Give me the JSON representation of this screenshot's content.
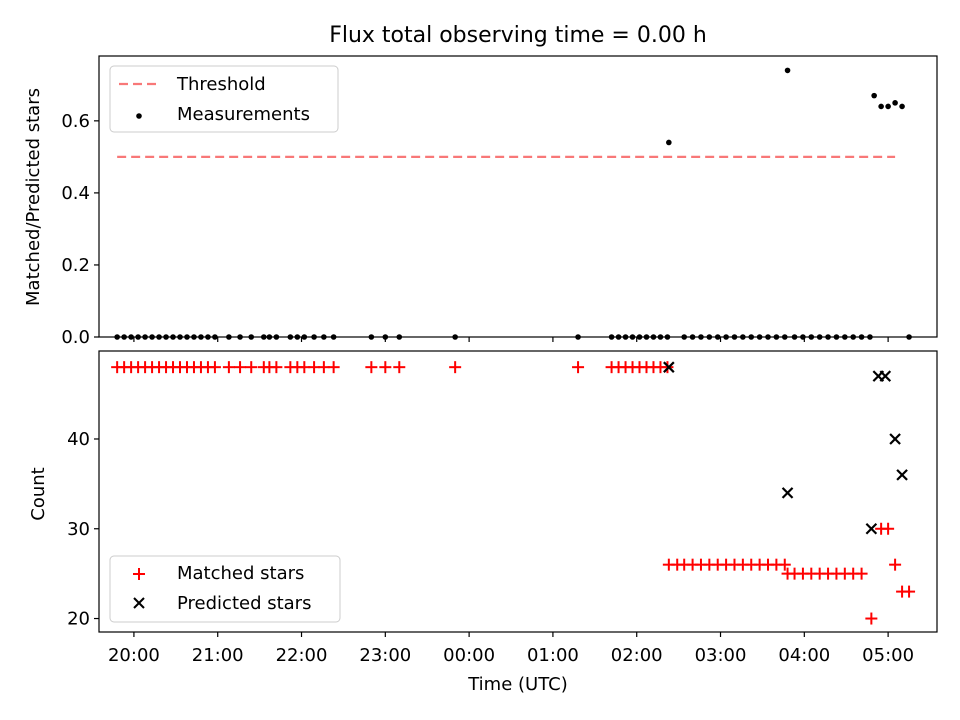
{
  "figure": {
    "title": "Flux total observing time = 0.00 h"
  },
  "chart_data": [
    {
      "type": "scatter",
      "title": "Flux total observing time = 0.00 h",
      "xlabel": "",
      "ylabel": "Matched/Predicted stars",
      "ylim": [
        0.0,
        0.78
      ],
      "yticks": [
        0.0,
        0.2,
        0.4,
        0.6
      ],
      "xlim": [
        "19:35",
        "05:35"
      ],
      "grid": false,
      "legend_position": "top-left",
      "threshold": {
        "name": "Threshold",
        "value": 0.5,
        "x_start": "19:48",
        "x_end": "05:05",
        "color": "#f87878",
        "style": "dashed"
      },
      "series": [
        {
          "name": "Measurements",
          "color": "#000000",
          "marker": "dot",
          "points": [
            [
              "19:48",
              0
            ],
            [
              "19:53",
              0
            ],
            [
              "19:58",
              0
            ],
            [
              "20:03",
              0
            ],
            [
              "20:08",
              0
            ],
            [
              "20:13",
              0
            ],
            [
              "20:18",
              0
            ],
            [
              "20:23",
              0
            ],
            [
              "20:28",
              0
            ],
            [
              "20:33",
              0
            ],
            [
              "20:38",
              0
            ],
            [
              "20:43",
              0
            ],
            [
              "20:48",
              0
            ],
            [
              "20:53",
              0
            ],
            [
              "20:58",
              0
            ],
            [
              "21:08",
              0
            ],
            [
              "21:16",
              0
            ],
            [
              "21:24",
              0
            ],
            [
              "21:33",
              0
            ],
            [
              "21:37",
              0
            ],
            [
              "21:42",
              0
            ],
            [
              "21:52",
              0
            ],
            [
              "21:57",
              0
            ],
            [
              "22:02",
              0
            ],
            [
              "22:09",
              0
            ],
            [
              "22:16",
              0
            ],
            [
              "22:23",
              0
            ],
            [
              "22:50",
              0
            ],
            [
              "23:00",
              0
            ],
            [
              "23:10",
              0
            ],
            [
              "23:50",
              0
            ],
            [
              "01:18",
              0
            ],
            [
              "01:42",
              0
            ],
            [
              "01:47",
              0
            ],
            [
              "01:52",
              0
            ],
            [
              "01:57",
              0
            ],
            [
              "02:02",
              0
            ],
            [
              "02:07",
              0
            ],
            [
              "02:12",
              0
            ],
            [
              "02:17",
              0
            ],
            [
              "02:22",
              0
            ],
            [
              "02:23",
              0.54
            ],
            [
              "02:34",
              0
            ],
            [
              "02:40",
              0
            ],
            [
              "02:46",
              0
            ],
            [
              "02:52",
              0
            ],
            [
              "02:58",
              0
            ],
            [
              "03:04",
              0
            ],
            [
              "03:10",
              0
            ],
            [
              "03:16",
              0
            ],
            [
              "03:22",
              0
            ],
            [
              "03:28",
              0
            ],
            [
              "03:34",
              0
            ],
            [
              "03:40",
              0
            ],
            [
              "03:46",
              0
            ],
            [
              "03:48",
              0.74
            ],
            [
              "03:53",
              0
            ],
            [
              "03:59",
              0
            ],
            [
              "04:05",
              0
            ],
            [
              "04:11",
              0
            ],
            [
              "04:17",
              0
            ],
            [
              "04:23",
              0
            ],
            [
              "04:29",
              0
            ],
            [
              "04:35",
              0
            ],
            [
              "04:41",
              0
            ],
            [
              "04:47",
              0
            ],
            [
              "04:50",
              0.67
            ],
            [
              "04:55",
              0.64
            ],
            [
              "05:00",
              0.64
            ],
            [
              "05:05",
              0.65
            ],
            [
              "05:10",
              0.64
            ],
            [
              "05:15",
              0
            ]
          ]
        }
      ]
    },
    {
      "type": "scatter",
      "title": "",
      "xlabel": "Time (UTC)",
      "ylabel": "Count",
      "ylim": [
        18.5,
        49.8
      ],
      "yticks": [
        20,
        30,
        40
      ],
      "xlim": [
        "19:35",
        "05:35"
      ],
      "xticks": [
        "20:00",
        "21:00",
        "22:00",
        "23:00",
        "00:00",
        "01:00",
        "02:00",
        "03:00",
        "04:00",
        "05:00"
      ],
      "grid": false,
      "legend_position": "bottom-left",
      "series": [
        {
          "name": "Matched stars",
          "color": "#ff0000",
          "marker": "plus",
          "points": [
            [
              "19:48",
              48
            ],
            [
              "19:53",
              48
            ],
            [
              "19:58",
              48
            ],
            [
              "20:03",
              48
            ],
            [
              "20:08",
              48
            ],
            [
              "20:13",
              48
            ],
            [
              "20:18",
              48
            ],
            [
              "20:23",
              48
            ],
            [
              "20:28",
              48
            ],
            [
              "20:33",
              48
            ],
            [
              "20:38",
              48
            ],
            [
              "20:43",
              48
            ],
            [
              "20:48",
              48
            ],
            [
              "20:53",
              48
            ],
            [
              "20:58",
              48
            ],
            [
              "21:08",
              48
            ],
            [
              "21:16",
              48
            ],
            [
              "21:24",
              48
            ],
            [
              "21:33",
              48
            ],
            [
              "21:37",
              48
            ],
            [
              "21:42",
              48
            ],
            [
              "21:52",
              48
            ],
            [
              "21:57",
              48
            ],
            [
              "22:02",
              48
            ],
            [
              "22:09",
              48
            ],
            [
              "22:16",
              48
            ],
            [
              "22:23",
              48
            ],
            [
              "22:50",
              48
            ],
            [
              "23:00",
              48
            ],
            [
              "23:10",
              48
            ],
            [
              "23:50",
              48
            ],
            [
              "01:18",
              48
            ],
            [
              "01:42",
              48
            ],
            [
              "01:47",
              48
            ],
            [
              "01:52",
              48
            ],
            [
              "01:57",
              48
            ],
            [
              "02:02",
              48
            ],
            [
              "02:07",
              48
            ],
            [
              "02:12",
              48
            ],
            [
              "02:17",
              48
            ],
            [
              "02:22",
              48
            ],
            [
              "02:23",
              26
            ],
            [
              "02:29",
              26
            ],
            [
              "02:34",
              26
            ],
            [
              "02:40",
              26
            ],
            [
              "02:46",
              26
            ],
            [
              "02:52",
              26
            ],
            [
              "02:58",
              26
            ],
            [
              "03:04",
              26
            ],
            [
              "03:10",
              26
            ],
            [
              "03:16",
              26
            ],
            [
              "03:22",
              26
            ],
            [
              "03:28",
              26
            ],
            [
              "03:34",
              26
            ],
            [
              "03:40",
              26
            ],
            [
              "03:46",
              26
            ],
            [
              "03:48",
              25
            ],
            [
              "03:53",
              25
            ],
            [
              "03:59",
              25
            ],
            [
              "04:05",
              25
            ],
            [
              "04:11",
              25
            ],
            [
              "04:17",
              25
            ],
            [
              "04:23",
              25
            ],
            [
              "04:29",
              25
            ],
            [
              "04:35",
              25
            ],
            [
              "04:41",
              25
            ],
            [
              "04:48",
              20
            ],
            [
              "04:55",
              30
            ],
            [
              "05:00",
              30
            ],
            [
              "05:05",
              26
            ],
            [
              "05:10",
              23
            ],
            [
              "05:15",
              23
            ]
          ]
        },
        {
          "name": "Predicted stars",
          "color": "#000000",
          "marker": "x",
          "points": [
            [
              "02:23",
              48
            ],
            [
              "03:48",
              34
            ],
            [
              "04:48",
              30
            ],
            [
              "04:53",
              47
            ],
            [
              "04:58",
              47
            ],
            [
              "05:05",
              40
            ],
            [
              "05:10",
              36
            ]
          ]
        }
      ]
    }
  ]
}
